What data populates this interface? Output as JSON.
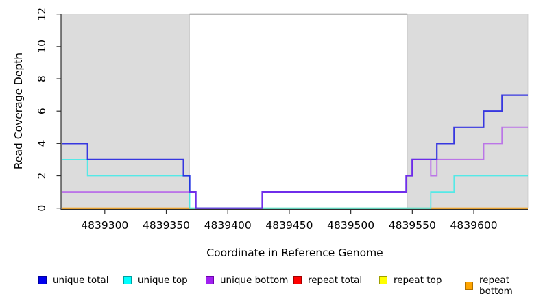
{
  "chart_data": {
    "type": "line",
    "subtype": "step-after-coverage",
    "title": "",
    "xlabel": "Coordinate in Reference Genome",
    "ylabel": "Read Coverage Depth",
    "x_range": [
      4839265,
      4839644
    ],
    "y_range": [
      0,
      12
    ],
    "x_ticks": [
      "4839300",
      "4839350",
      "4839400",
      "4839450",
      "4839500",
      "4839550",
      "4839600"
    ],
    "x_tick_values": [
      4839300,
      4839350,
      4839400,
      4839450,
      4839500,
      4839550,
      4839600
    ],
    "y_ticks": [
      "0",
      "2",
      "4",
      "6",
      "8",
      "10",
      "12"
    ],
    "y_tick_values": [
      0,
      2,
      4,
      6,
      8,
      10,
      12
    ],
    "grid": "off",
    "background_color": "#ffffff",
    "shaded_regions": {
      "fill": "#dcdcdc",
      "edge": "#c8c8c8",
      "ranges": [
        [
          4839265,
          4839369
        ],
        [
          4839546,
          4839644
        ]
      ]
    },
    "region_line": {
      "comment": "gray horizontal line at max depth spanning the unshaded gap",
      "y": 12,
      "x_start": 4839369,
      "x_end": 4839546,
      "color": "#8a8a8a"
    },
    "baseline_blend_line": {
      "comment": "pale green line at depth 0 where overlapping zero-depth lines blend",
      "color": "#a5d8a0",
      "segments": [
        [
          [
            4839369,
            0
          ],
          [
            4839565,
            0
          ]
        ]
      ]
    },
    "series": [
      {
        "name": "unique total",
        "color": "#0000ee",
        "stroke": "#1a1ae0",
        "opacity": 0.85,
        "width": 2.2,
        "segments": [
          [
            [
              4839265,
              4
            ],
            [
              4839286,
              3
            ],
            [
              4839364,
              2
            ],
            [
              4839369,
              1
            ],
            [
              4839374,
              0
            ],
            [
              4839428,
              1
            ],
            [
              4839545,
              2
            ],
            [
              4839550,
              3
            ],
            [
              4839570,
              4
            ],
            [
              4839584,
              5
            ],
            [
              4839608,
              6
            ],
            [
              4839623,
              7
            ],
            [
              4839644,
              7
            ]
          ]
        ]
      },
      {
        "name": "unique top",
        "color": "#00ffff",
        "stroke": "#00f0ee",
        "opacity": 0.62,
        "width": 1.8,
        "segments": [
          [
            [
              4839265,
              3
            ],
            [
              4839286,
              2
            ],
            [
              4839369,
              0
            ],
            [
              4839565,
              1
            ],
            [
              4839584,
              2
            ],
            [
              4839644,
              2
            ]
          ]
        ]
      },
      {
        "name": "unique bottom",
        "color": "#a020f0",
        "stroke": "#a020f0",
        "opacity": 0.55,
        "width": 2,
        "segments": [
          [
            [
              4839265,
              1
            ],
            [
              4839374,
              0
            ],
            [
              4839428,
              1
            ],
            [
              4839545,
              2
            ],
            [
              4839550,
              3
            ],
            [
              4839565,
              2
            ],
            [
              4839570,
              3
            ],
            [
              4839608,
              4
            ],
            [
              4839623,
              5
            ],
            [
              4839644,
              5
            ]
          ]
        ]
      },
      {
        "name": "repeat total",
        "color": "#ff0000",
        "stroke": "#ff0000",
        "opacity": 1,
        "width": 2,
        "segments": []
      },
      {
        "name": "repeat top",
        "color": "#ffff00",
        "stroke": "#ffff00",
        "opacity": 1,
        "width": 2,
        "segments": []
      },
      {
        "name": "repeat bottom",
        "color": "#ffa500",
        "stroke": "#ff9e00",
        "opacity": 1,
        "width": 2,
        "segments": [
          [
            [
              4839265,
              0
            ],
            [
              4839369,
              0
            ]
          ],
          [
            [
              4839565,
              0
            ],
            [
              4839644,
              0
            ]
          ]
        ]
      }
    ],
    "legend": {
      "position": "bottom-horizontal",
      "entries": [
        {
          "label": "unique total",
          "color": "#0000ee",
          "border": "#0000a0"
        },
        {
          "label": "unique top",
          "color": "#00ffff",
          "border": "#009f9f"
        },
        {
          "label": "unique bottom",
          "color": "#a020f0",
          "border": "#6e00ad"
        },
        {
          "label": "repeat total",
          "color": "#ff0000",
          "border": "#a00000"
        },
        {
          "label": "repeat top",
          "color": "#ffff00",
          "border": "#9f9f00"
        },
        {
          "label": "repeat bottom",
          "color": "#ffa500",
          "border": "#b07000"
        }
      ]
    },
    "axis_color": "#2f2f2f"
  }
}
